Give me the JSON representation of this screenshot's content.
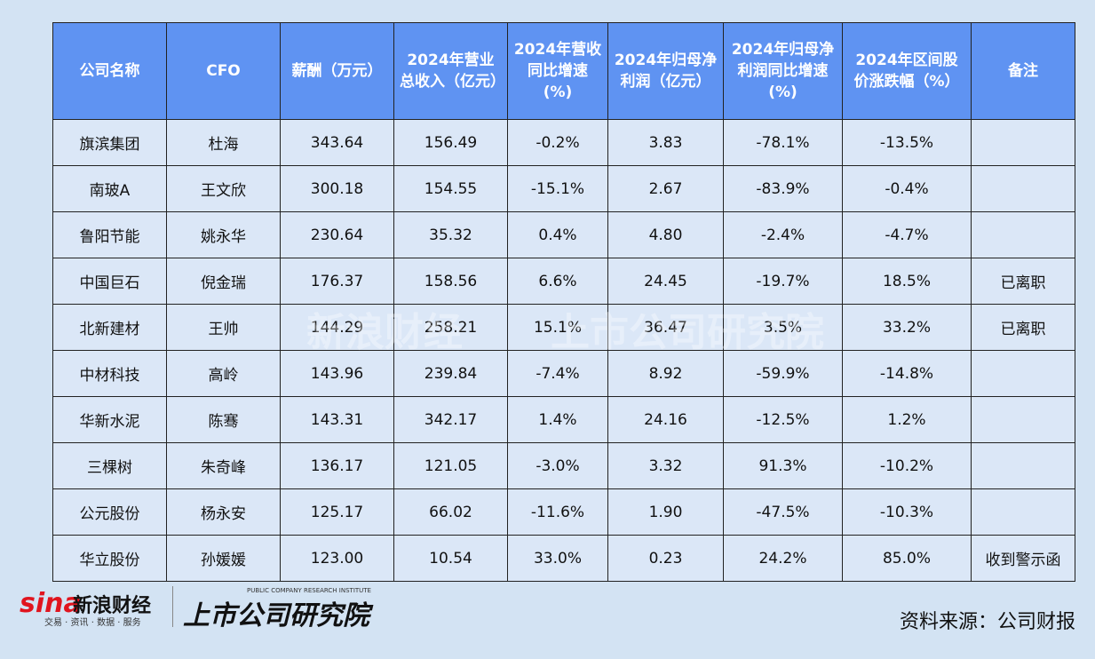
{
  "table": {
    "header": [
      "公司名称",
      "CFO",
      "薪酬（万元）",
      "2024年营业总收入（亿元）",
      "2024年营收同比增速(%)",
      "2024年归母净利润（亿元）",
      "2024年归母净利润同比增速(%)",
      "2024年区间股价涨跌幅（%）",
      "备注"
    ],
    "rows": [
      [
        "旗滨集团",
        "杜海",
        "343.64",
        "156.49",
        "-0.2%",
        "3.83",
        "-78.1%",
        "-13.5%",
        ""
      ],
      [
        "南玻A",
        "王文欣",
        "300.18",
        "154.55",
        "-15.1%",
        "2.67",
        "-83.9%",
        "-0.4%",
        ""
      ],
      [
        "鲁阳节能",
        "姚永华",
        "230.64",
        "35.32",
        "0.4%",
        "4.80",
        "-2.4%",
        "-4.7%",
        ""
      ],
      [
        "中国巨石",
        "倪金瑞",
        "176.37",
        "158.56",
        "6.6%",
        "24.45",
        "-19.7%",
        "18.5%",
        "已离职"
      ],
      [
        "北新建材",
        "王帅",
        "144.29",
        "258.21",
        "15.1%",
        "36.47",
        "3.5%",
        "33.2%",
        "已离职"
      ],
      [
        "中材科技",
        "高岭",
        "143.96",
        "239.84",
        "-7.4%",
        "8.92",
        "-59.9%",
        "-14.8%",
        ""
      ],
      [
        "华新水泥",
        "陈骞",
        "143.31",
        "342.17",
        "1.4%",
        "24.16",
        "-12.5%",
        "1.2%",
        ""
      ],
      [
        "三棵树",
        "朱奇峰",
        "136.17",
        "121.05",
        "-3.0%",
        "3.32",
        "91.3%",
        "-10.2%",
        ""
      ],
      [
        "公元股份",
        "杨永安",
        "125.17",
        "66.02",
        "-11.6%",
        "1.90",
        "-47.5%",
        "-10.3%",
        ""
      ],
      [
        "华立股份",
        "孙媛媛",
        "123.00",
        "10.54",
        "33.0%",
        "0.23",
        "24.2%",
        "85.0%",
        "收到警示函"
      ]
    ]
  },
  "watermark": {
    "brand": "新浪财经",
    "institute": "上市公司研究院"
  },
  "footer": {
    "logo_mark": "sina",
    "logo_name": "新浪财经",
    "logo_tagline": "交易 · 资讯 · 数据 · 服务",
    "institute_en": "PUBLIC COMPANY RESEARCH INSTITUTE",
    "institute": "上市公司研究院",
    "source": "资料来源：公司财报"
  }
}
